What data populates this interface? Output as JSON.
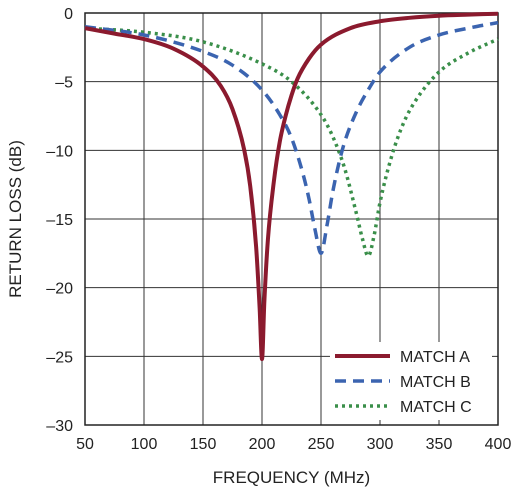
{
  "chart_data": {
    "type": "line",
    "xlabel": "FREQUENCY (MHz)",
    "ylabel": "RETURN LOSS (dB)",
    "xlim": [
      50,
      400
    ],
    "ylim": [
      -30,
      0
    ],
    "xticks": [
      50,
      100,
      150,
      200,
      250,
      300,
      350,
      400
    ],
    "yticks": [
      0,
      -5,
      -10,
      -15,
      -20,
      -25,
      -30
    ],
    "xtick_labels": [
      "50",
      "100",
      "150",
      "200",
      "250",
      "300",
      "350",
      "400"
    ],
    "ytick_labels": [
      "0",
      "–5",
      "–10",
      "–15",
      "–20",
      "–25",
      "–30"
    ],
    "grid": true,
    "legend_position": "bottom-right",
    "series": [
      {
        "name": "MATCH A",
        "color": "#8b1a2e",
        "style": "solid",
        "x": [
          50,
          75,
          100,
          125,
          150,
          165,
          175,
          185,
          190,
          195,
          198,
          200,
          202,
          205,
          210,
          215,
          220,
          225,
          230,
          240,
          250,
          275,
          300,
          325,
          350,
          375,
          400
        ],
        "y": [
          -1.1,
          -1.5,
          -1.9,
          -2.6,
          -3.9,
          -5.3,
          -7.0,
          -10.0,
          -12.6,
          -17.0,
          -21.5,
          -25.2,
          -21.0,
          -16.5,
          -12.3,
          -9.4,
          -7.5,
          -6.0,
          -4.8,
          -3.3,
          -2.3,
          -1.1,
          -0.6,
          -0.35,
          -0.2,
          -0.12,
          -0.05
        ]
      },
      {
        "name": "MATCH B",
        "color": "#3b64b0",
        "style": "dashed",
        "x": [
          50,
          100,
          150,
          175,
          200,
          215,
          225,
          235,
          240,
          245,
          250,
          255,
          260,
          265,
          270,
          280,
          290,
          300,
          325,
          350,
          375,
          400
        ],
        "y": [
          -1.0,
          -1.6,
          -2.8,
          -3.8,
          -5.6,
          -7.4,
          -9.1,
          -11.8,
          -13.6,
          -15.8,
          -17.5,
          -15.5,
          -13.0,
          -11.0,
          -9.4,
          -7.2,
          -5.6,
          -4.3,
          -2.5,
          -1.6,
          -1.1,
          -0.7
        ]
      },
      {
        "name": "MATCH C",
        "color": "#3a8f4a",
        "style": "dotted",
        "x": [
          50,
          100,
          150,
          200,
          225,
          250,
          260,
          270,
          280,
          285,
          290,
          295,
          300,
          310,
          320,
          330,
          350,
          375,
          400
        ],
        "y": [
          -1.1,
          -1.4,
          -2.1,
          -3.7,
          -5.0,
          -7.4,
          -9.0,
          -11.3,
          -14.6,
          -16.4,
          -17.7,
          -16.2,
          -13.8,
          -10.4,
          -8.0,
          -6.4,
          -4.3,
          -2.9,
          -1.9
        ]
      }
    ]
  }
}
